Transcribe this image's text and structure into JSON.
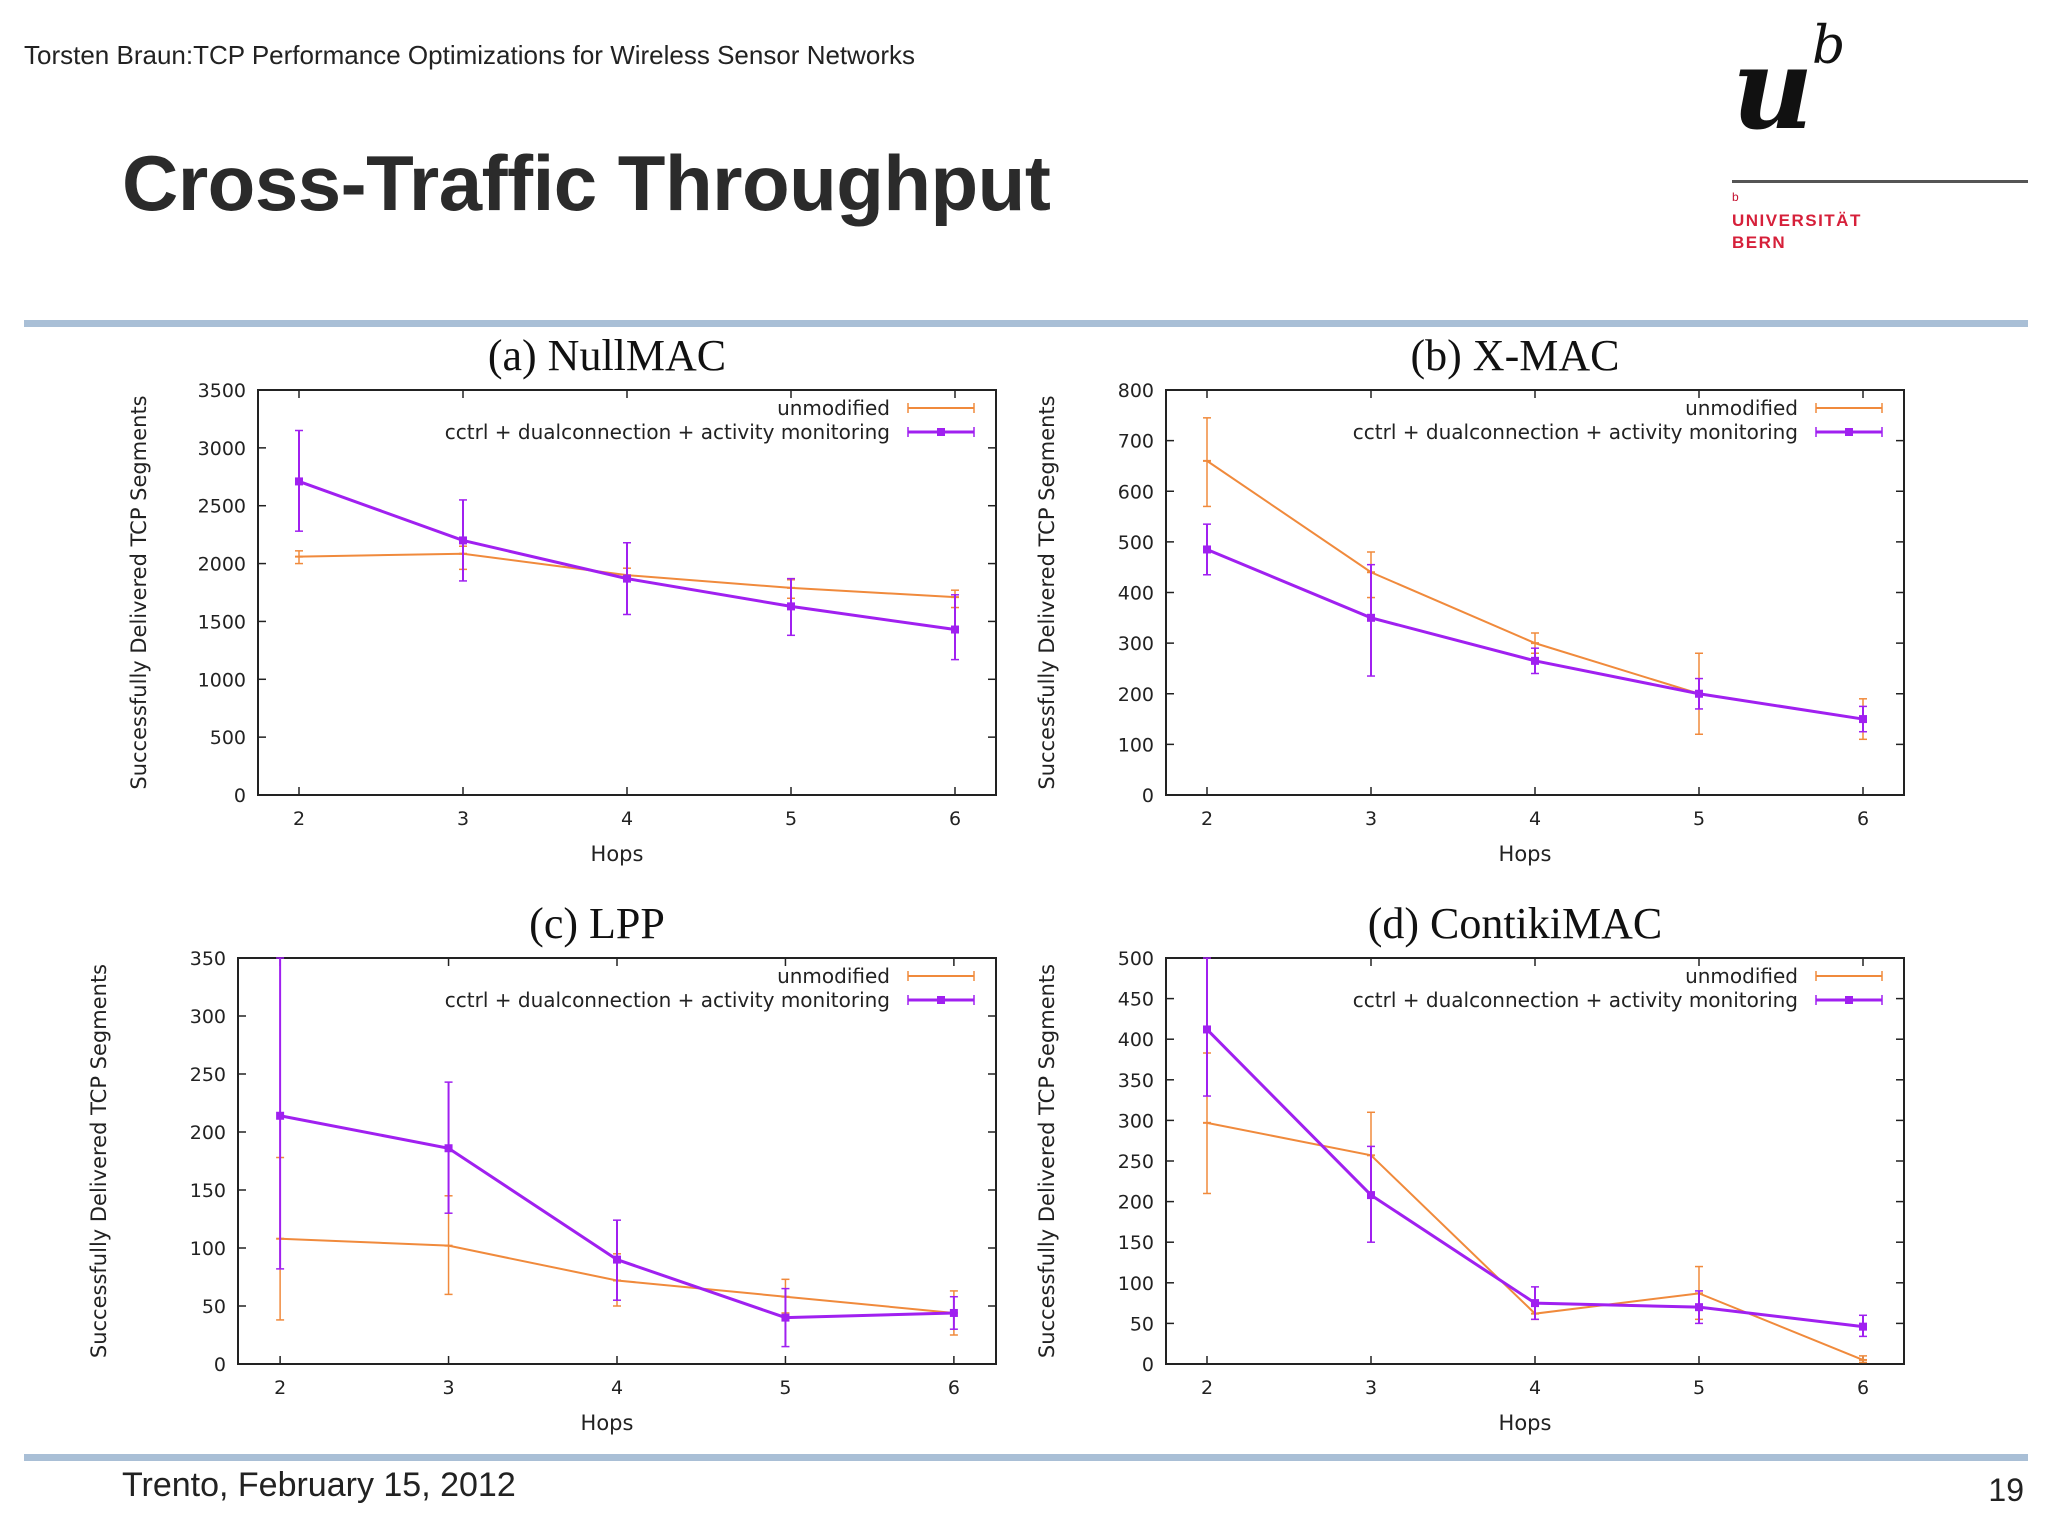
{
  "header": {
    "caption": "Torsten Braun:TCP Performance Optimizations for Wireless Sensor Networks",
    "title": "Cross-Traffic Throughput"
  },
  "logo": {
    "letter": "u",
    "superscript": "b",
    "small_b": "b",
    "line1": "UNIVERSITÄT",
    "line2": "BERN"
  },
  "footer": {
    "date": "Trento, February 15, 2012",
    "page": "19"
  },
  "colors": {
    "unmodified": "#f08a3c",
    "modified": "#a020f0",
    "rule": "#a9bfd6",
    "logo_red": "#d6203a"
  },
  "chart_data": [
    {
      "type": "line",
      "title": "(a) NullMAC",
      "xlabel": "Hops",
      "ylabel": "Successfully Delivered TCP Segments",
      "x": [
        2,
        3,
        4,
        5,
        6
      ],
      "xlim": [
        1.75,
        6.25
      ],
      "ylim": [
        0,
        3500
      ],
      "yticks": [
        0,
        500,
        1000,
        1500,
        2000,
        2500,
        3000,
        3500
      ],
      "legend_position": "top-right",
      "series": [
        {
          "name": "unmodified",
          "color": "#f08a3c",
          "values": [
            2060,
            2085,
            1900,
            1790,
            1710
          ],
          "err_low": [
            2000,
            1950,
            1850,
            1700,
            1620
          ],
          "err_high": [
            2110,
            2150,
            1960,
            1860,
            1770
          ]
        },
        {
          "name": "cctrl + dualconnection + activity monitoring",
          "color": "#a020f0",
          "values": [
            2710,
            2200,
            1870,
            1630,
            1430
          ],
          "err_low": [
            2280,
            1850,
            1560,
            1380,
            1170
          ],
          "err_high": [
            3150,
            2550,
            2180,
            1870,
            1730
          ]
        }
      ]
    },
    {
      "type": "line",
      "title": "(b) X-MAC",
      "xlabel": "Hops",
      "ylabel": "Successfully Delivered TCP Segments",
      "x": [
        2,
        3,
        4,
        5,
        6
      ],
      "xlim": [
        1.75,
        6.25
      ],
      "ylim": [
        0,
        800
      ],
      "yticks": [
        0,
        100,
        200,
        300,
        400,
        500,
        600,
        700,
        800
      ],
      "legend_position": "top-right",
      "series": [
        {
          "name": "unmodified",
          "color": "#f08a3c",
          "values": [
            660,
            440,
            300,
            200,
            150
          ],
          "err_low": [
            570,
            390,
            280,
            120,
            110
          ],
          "err_high": [
            745,
            480,
            320,
            280,
            190
          ]
        },
        {
          "name": "cctrl + dualconnection + activity monitoring",
          "color": "#a020f0",
          "values": [
            485,
            350,
            265,
            200,
            150
          ],
          "err_low": [
            435,
            235,
            240,
            170,
            125
          ],
          "err_high": [
            535,
            455,
            290,
            230,
            175
          ]
        }
      ]
    },
    {
      "type": "line",
      "title": "(c) LPP",
      "xlabel": "Hops",
      "ylabel": "Successfully Delivered TCP Segments",
      "x": [
        2,
        3,
        4,
        5,
        6
      ],
      "xlim": [
        1.75,
        6.25
      ],
      "ylim": [
        0,
        350
      ],
      "yticks": [
        0,
        50,
        100,
        150,
        200,
        250,
        300,
        350
      ],
      "legend_position": "top-right",
      "series": [
        {
          "name": "unmodified",
          "color": "#f08a3c",
          "values": [
            108,
            102,
            72,
            58,
            44
          ],
          "err_low": [
            38,
            60,
            50,
            44,
            25
          ],
          "err_high": [
            178,
            145,
            95,
            73,
            63
          ]
        },
        {
          "name": "cctrl + dualconnection + activity monitoring",
          "color": "#a020f0",
          "values": [
            214,
            186,
            90,
            40,
            44
          ],
          "err_low": [
            82,
            130,
            55,
            15,
            30
          ],
          "err_high": [
            350,
            243,
            124,
            65,
            58
          ]
        }
      ]
    },
    {
      "type": "line",
      "title": "(d) ContikiMAC",
      "xlabel": "Hops",
      "ylabel": "Successfully Delivered TCP Segments",
      "x": [
        2,
        3,
        4,
        5,
        6
      ],
      "xlim": [
        1.75,
        6.25
      ],
      "ylim": [
        0,
        500
      ],
      "yticks": [
        0,
        50,
        100,
        150,
        200,
        250,
        300,
        350,
        400,
        450,
        500
      ],
      "legend_position": "top-right",
      "series": [
        {
          "name": "unmodified",
          "color": "#f08a3c",
          "values": [
            297,
            257,
            62,
            87,
            5
          ],
          "err_low": [
            210,
            205,
            55,
            55,
            2
          ],
          "err_high": [
            383,
            310,
            72,
            120,
            10
          ]
        },
        {
          "name": "cctrl + dualconnection + activity monitoring",
          "color": "#a020f0",
          "values": [
            412,
            208,
            75,
            70,
            46
          ],
          "err_low": [
            330,
            150,
            55,
            50,
            34
          ],
          "err_high": [
            500,
            268,
            95,
            90,
            60
          ]
        }
      ]
    }
  ]
}
